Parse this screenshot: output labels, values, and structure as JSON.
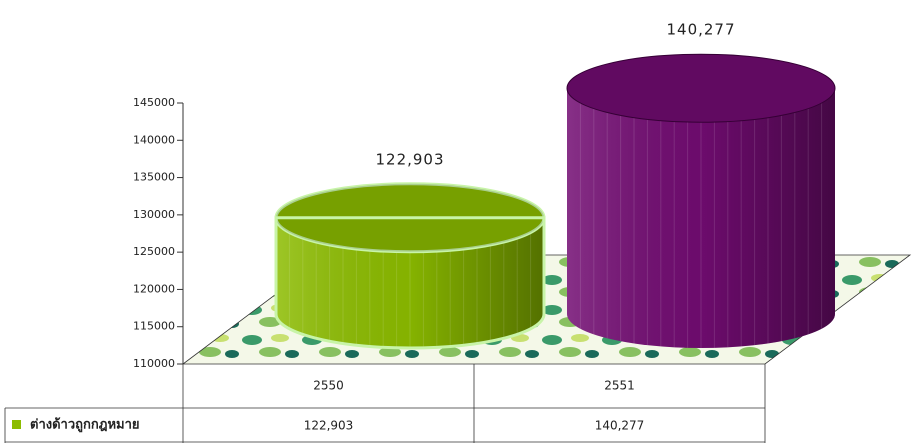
{
  "chart_data": {
    "type": "cylinder",
    "categories": [
      "2550",
      "2551"
    ],
    "series": [
      {
        "name": "ต่างด้าวถูกกฎหมาย",
        "color": "#8cbc00",
        "colors": [
          "#8cbc00",
          "#720c72"
        ],
        "values": [
          122903,
          140277
        ],
        "value_labels": [
          "122,903",
          "140,277"
        ]
      }
    ],
    "ylim": [
      110000,
      145000
    ],
    "yticks": [
      110000,
      115000,
      120000,
      125000,
      130000,
      135000,
      140000,
      145000
    ]
  }
}
